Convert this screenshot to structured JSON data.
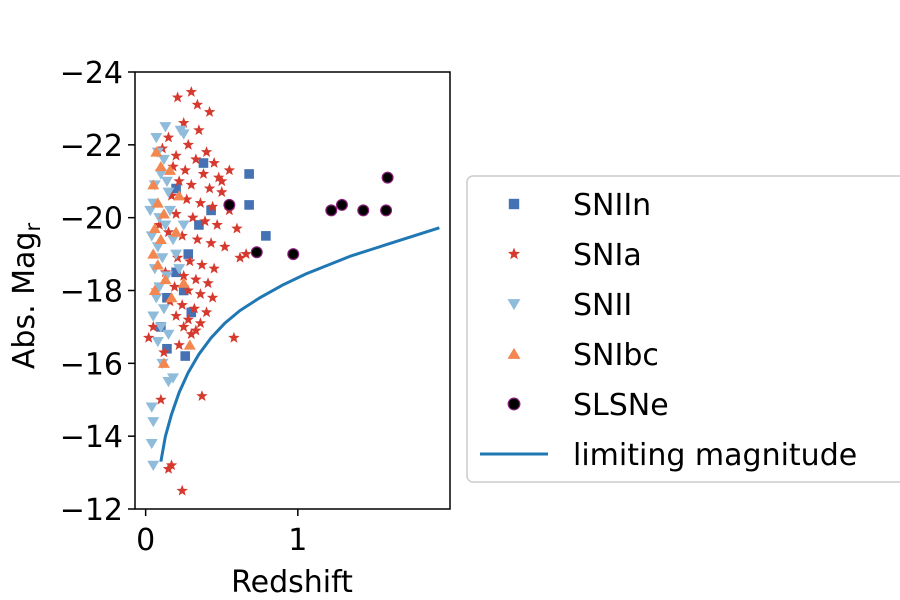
{
  "chart_data": {
    "type": "scatter",
    "xlabel": "Redshift",
    "ylabel": "Abs. Mag",
    "ylabel_sub": "r",
    "xlim": [
      -0.07,
      2.0
    ],
    "ylim": [
      -12,
      -24
    ],
    "y_inverted": true,
    "xticks": [
      0,
      1
    ],
    "yticks": [
      -24,
      -22,
      -20,
      -18,
      -16,
      -14,
      -12
    ],
    "xtick_labels": [
      "0",
      "1"
    ],
    "ytick_labels": [
      "−24",
      "−22",
      "−20",
      "−18",
      "−16",
      "−14",
      "−12"
    ],
    "legend_position": "right",
    "series": [
      {
        "name": "SNIIn",
        "marker": "square",
        "color": "#4472b4",
        "points": [
          [
            0.68,
            -21.2
          ],
          [
            0.68,
            -20.35
          ],
          [
            0.79,
            -19.5
          ],
          [
            0.43,
            -20.2
          ],
          [
            0.2,
            -20.8
          ],
          [
            0.28,
            -19.0
          ],
          [
            0.14,
            -17.8
          ],
          [
            0.1,
            -17.0
          ],
          [
            0.14,
            -16.4
          ],
          [
            0.26,
            -16.2
          ],
          [
            0.3,
            -17.4
          ],
          [
            0.2,
            -18.5
          ],
          [
            0.35,
            -19.8
          ],
          [
            0.38,
            -21.5
          ],
          [
            0.25,
            -18.0
          ]
        ]
      },
      {
        "name": "SNIa",
        "marker": "star",
        "color": "#d63a2f",
        "points": [
          [
            0.21,
            -23.3
          ],
          [
            0.3,
            -23.45
          ],
          [
            0.42,
            -22.9
          ],
          [
            0.25,
            -22.6
          ],
          [
            0.35,
            -22.4
          ],
          [
            0.15,
            -22.2
          ],
          [
            0.28,
            -22.0
          ],
          [
            0.4,
            -21.8
          ],
          [
            0.2,
            -21.7
          ],
          [
            0.33,
            -21.6
          ],
          [
            0.45,
            -21.5
          ],
          [
            0.18,
            -21.4
          ],
          [
            0.26,
            -21.3
          ],
          [
            0.38,
            -21.2
          ],
          [
            0.48,
            -21.1
          ],
          [
            0.22,
            -21.0
          ],
          [
            0.3,
            -20.9
          ],
          [
            0.42,
            -20.8
          ],
          [
            0.5,
            -20.7
          ],
          [
            0.17,
            -20.6
          ],
          [
            0.27,
            -20.5
          ],
          [
            0.36,
            -20.4
          ],
          [
            0.44,
            -20.3
          ],
          [
            0.55,
            -20.2
          ],
          [
            0.2,
            -20.1
          ],
          [
            0.31,
            -20.0
          ],
          [
            0.39,
            -19.9
          ],
          [
            0.47,
            -19.8
          ],
          [
            0.6,
            -19.7
          ],
          [
            0.15,
            -19.6
          ],
          [
            0.24,
            -19.5
          ],
          [
            0.34,
            -19.4
          ],
          [
            0.43,
            -19.3
          ],
          [
            0.52,
            -19.2
          ],
          [
            0.66,
            -19.0
          ],
          [
            0.21,
            -18.9
          ],
          [
            0.29,
            -18.8
          ],
          [
            0.37,
            -18.7
          ],
          [
            0.45,
            -18.6
          ],
          [
            0.13,
            -18.5
          ],
          [
            0.25,
            -18.4
          ],
          [
            0.33,
            -18.3
          ],
          [
            0.41,
            -18.2
          ],
          [
            0.19,
            -18.1
          ],
          [
            0.28,
            -18.0
          ],
          [
            0.36,
            -17.9
          ],
          [
            0.44,
            -17.8
          ],
          [
            0.16,
            -17.7
          ],
          [
            0.24,
            -17.6
          ],
          [
            0.32,
            -17.5
          ],
          [
            0.4,
            -17.4
          ],
          [
            0.2,
            -17.3
          ],
          [
            0.28,
            -17.2
          ],
          [
            0.36,
            -17.1
          ],
          [
            0.25,
            -17.0
          ],
          [
            0.33,
            -16.9
          ],
          [
            0.3,
            -16.8
          ],
          [
            0.58,
            -16.7
          ],
          [
            0.02,
            -16.7
          ],
          [
            0.22,
            -16.5
          ],
          [
            0.12,
            -16.3
          ],
          [
            0.37,
            -15.1
          ],
          [
            0.1,
            -15.0
          ],
          [
            0.17,
            -13.2
          ],
          [
            0.15,
            -13.1
          ],
          [
            0.24,
            -12.5
          ],
          [
            0.05,
            -17.0
          ],
          [
            0.07,
            -18.0
          ],
          [
            0.55,
            -21.3
          ],
          [
            0.5,
            -21.0
          ],
          [
            0.62,
            -18.9
          ],
          [
            0.09,
            -19.8
          ],
          [
            0.11,
            -21.9
          ],
          [
            0.34,
            -23.1
          ]
        ]
      },
      {
        "name": "SNII",
        "marker": "triangle-down",
        "color": "#8fbcdb",
        "points": [
          [
            0.07,
            -22.2
          ],
          [
            0.13,
            -22.5
          ],
          [
            0.23,
            -22.4
          ],
          [
            0.25,
            -22.3
          ],
          [
            0.08,
            -21.8
          ],
          [
            0.12,
            -21.6
          ],
          [
            0.1,
            -21.2
          ],
          [
            0.06,
            -20.9
          ],
          [
            0.15,
            -20.7
          ],
          [
            0.05,
            -20.4
          ],
          [
            0.09,
            -20.0
          ],
          [
            0.13,
            -19.8
          ],
          [
            0.04,
            -19.5
          ],
          [
            0.08,
            -19.2
          ],
          [
            0.18,
            -19.4
          ],
          [
            0.11,
            -18.9
          ],
          [
            0.06,
            -18.6
          ],
          [
            0.14,
            -18.4
          ],
          [
            0.09,
            -18.1
          ],
          [
            0.07,
            -17.8
          ],
          [
            0.12,
            -17.5
          ],
          [
            0.05,
            -17.3
          ],
          [
            0.1,
            -17.0
          ],
          [
            0.15,
            -16.8
          ],
          [
            0.08,
            -16.6
          ],
          [
            0.11,
            -16.0
          ],
          [
            0.18,
            -15.6
          ],
          [
            0.15,
            -15.5
          ],
          [
            0.04,
            -14.8
          ],
          [
            0.05,
            -14.4
          ],
          [
            0.04,
            -13.8
          ],
          [
            0.05,
            -13.2
          ],
          [
            0.2,
            -19.0
          ],
          [
            0.22,
            -18.6
          ],
          [
            0.25,
            -19.8
          ],
          [
            0.03,
            -20.2
          ],
          [
            0.14,
            -21.0
          ],
          [
            0.16,
            -20.2
          ]
        ]
      },
      {
        "name": "SNIbc",
        "marker": "triangle-up",
        "color": "#f3874f",
        "points": [
          [
            0.07,
            -21.8
          ],
          [
            0.1,
            -21.4
          ],
          [
            0.16,
            -21.3
          ],
          [
            0.05,
            -20.9
          ],
          [
            0.08,
            -20.4
          ],
          [
            0.12,
            -20.1
          ],
          [
            0.06,
            -19.7
          ],
          [
            0.1,
            -19.4
          ],
          [
            0.05,
            -19.0
          ],
          [
            0.08,
            -18.7
          ],
          [
            0.13,
            -18.3
          ],
          [
            0.06,
            -18.0
          ],
          [
            0.17,
            -17.8
          ],
          [
            0.12,
            -16.0
          ],
          [
            0.29,
            -16.5
          ],
          [
            0.2,
            -19.6
          ],
          [
            0.22,
            -20.6
          ],
          [
            0.25,
            -18.2
          ]
        ]
      },
      {
        "name": "SLSNe",
        "marker": "circle",
        "color": "#000000",
        "edge_color": "#8a1f7a",
        "points": [
          [
            0.55,
            -20.35
          ],
          [
            0.73,
            -19.05
          ],
          [
            0.97,
            -19.0
          ],
          [
            1.22,
            -20.2
          ],
          [
            1.29,
            -20.35
          ],
          [
            1.43,
            -20.2
          ],
          [
            1.58,
            -20.2
          ],
          [
            1.59,
            -21.1
          ]
        ]
      },
      {
        "name": "limiting magnitude",
        "marker": "line",
        "color": "#1f77b4",
        "points": [
          [
            0.1,
            -13.3
          ],
          [
            0.13,
            -14.0
          ],
          [
            0.17,
            -14.6
          ],
          [
            0.22,
            -15.2
          ],
          [
            0.28,
            -15.75
          ],
          [
            0.35,
            -16.25
          ],
          [
            0.43,
            -16.7
          ],
          [
            0.52,
            -17.1
          ],
          [
            0.62,
            -17.45
          ],
          [
            0.75,
            -17.8
          ],
          [
            0.9,
            -18.15
          ],
          [
            1.05,
            -18.45
          ],
          [
            1.2,
            -18.7
          ],
          [
            1.35,
            -18.95
          ],
          [
            1.5,
            -19.15
          ],
          [
            1.65,
            -19.35
          ],
          [
            1.8,
            -19.55
          ],
          [
            1.93,
            -19.72
          ]
        ]
      }
    ]
  }
}
